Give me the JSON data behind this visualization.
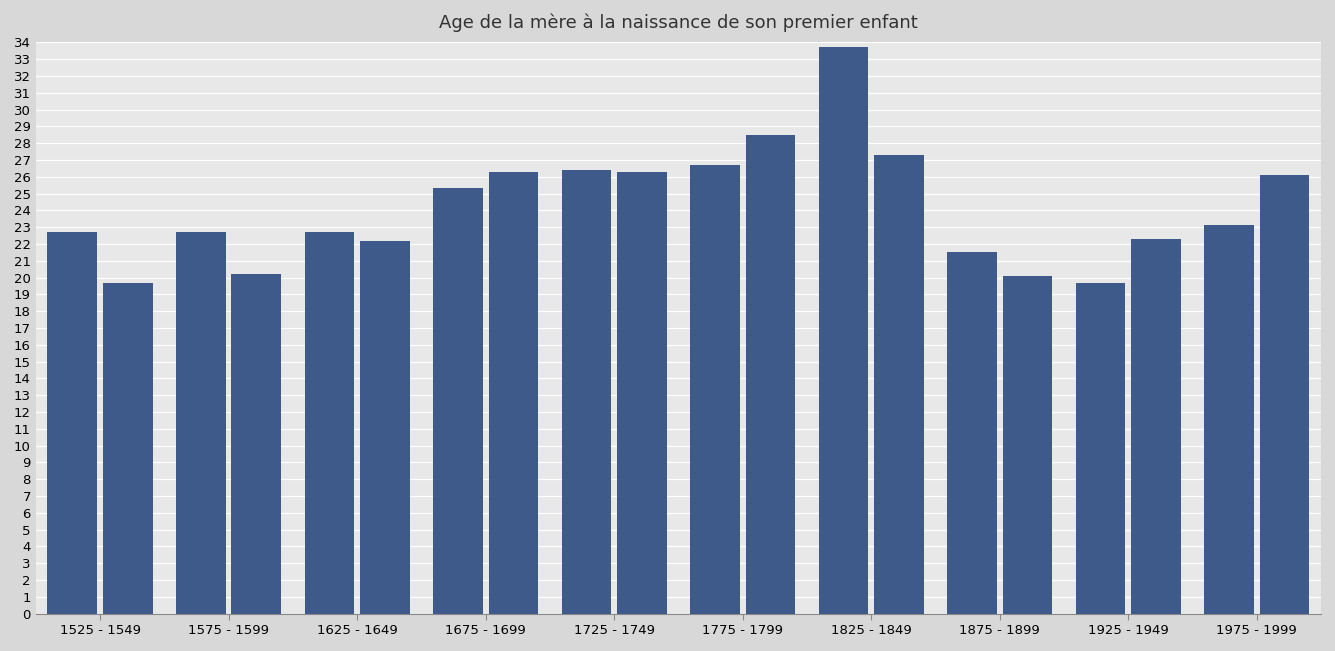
{
  "title": "Age de la mère à la naissance de son premier enfant",
  "categories": [
    "1525 - 1549",
    "1575 - 1599",
    "1625 - 1649",
    "1675 - 1699",
    "1725 - 1749",
    "1775 - 1799",
    "1825 - 1849",
    "1875 - 1899",
    "1925 - 1949",
    "1975 - 1999"
  ],
  "values": [
    22.7,
    19.7,
    22.7,
    20.2,
    22.7,
    22.2,
    25.3,
    26.3,
    26.4,
    26.3,
    26.7,
    28.5,
    33.7,
    27.3,
    21.5,
    20.1,
    19.7,
    22.3,
    23.1,
    26.1
  ],
  "bar_color": "#3d5a8a",
  "background_color": "#d8d8d8",
  "plot_background_color": "#e8e8e8",
  "ylim": [
    0,
    34
  ],
  "yticks": [
    0,
    1,
    2,
    3,
    4,
    5,
    6,
    7,
    8,
    9,
    10,
    11,
    12,
    13,
    14,
    15,
    16,
    17,
    18,
    19,
    20,
    21,
    22,
    23,
    24,
    25,
    26,
    27,
    28,
    29,
    30,
    31,
    32,
    33,
    34
  ],
  "grid_color": "#ffffff",
  "title_fontsize": 13,
  "tick_fontsize": 9.5,
  "figsize": [
    13.35,
    6.51
  ],
  "dpi": 100
}
